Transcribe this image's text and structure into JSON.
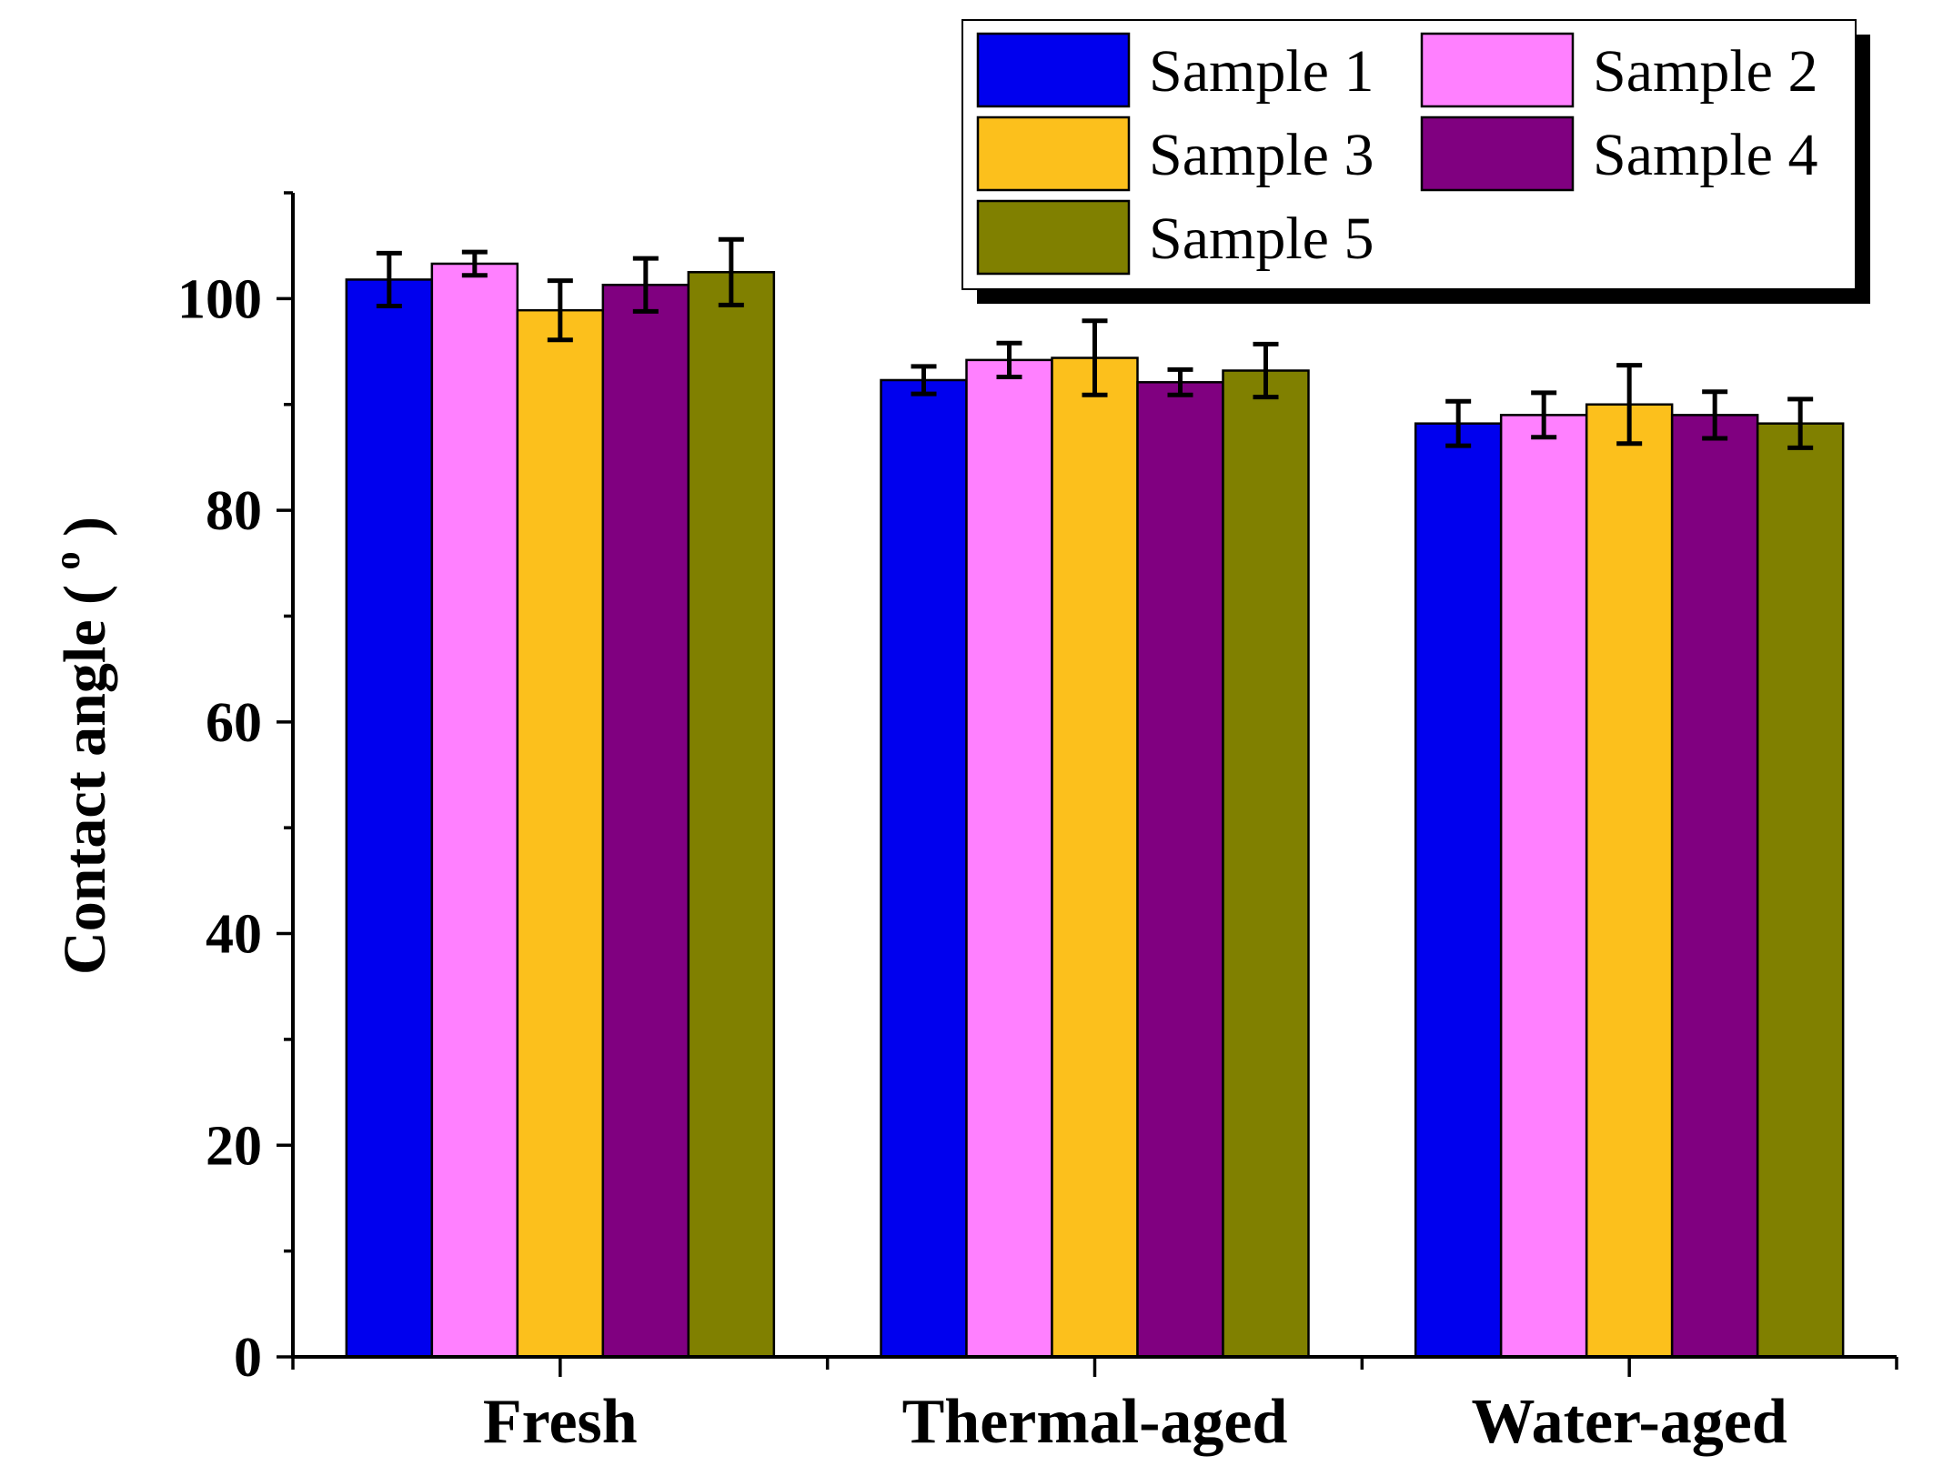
{
  "chart_data": {
    "type": "bar",
    "title": "",
    "xlabel": "",
    "ylabel": "Contact angle ( ",
    "ylabel_superscript": "o",
    "ylabel_close": " )",
    "ylim": [
      0,
      110
    ],
    "yticks": [
      0,
      20,
      40,
      60,
      80,
      100
    ],
    "ytick_labels": [
      "0",
      "20",
      "40",
      "60",
      "80",
      "100"
    ],
    "categories": [
      "Fresh",
      "Thermal-aged",
      "Water-aged"
    ],
    "grid": false,
    "legend_position": "top-right",
    "error_bars": true,
    "series": [
      {
        "name": "Sample 1",
        "color": "#0000ee",
        "values": [
          101.8,
          92.3,
          88.2
        ],
        "errors": [
          2.5,
          1.3,
          2.1
        ]
      },
      {
        "name": "Sample 2",
        "color": "#ff80ff",
        "values": [
          103.3,
          94.2,
          89.0
        ],
        "errors": [
          1.1,
          1.6,
          2.1
        ]
      },
      {
        "name": "Sample 3",
        "color": "#fcc01c",
        "values": [
          98.9,
          94.4,
          90.0
        ],
        "errors": [
          2.8,
          3.5,
          3.7
        ]
      },
      {
        "name": "Sample 4",
        "color": "#800080",
        "values": [
          101.3,
          92.1,
          89.0
        ],
        "errors": [
          2.5,
          1.2,
          2.2
        ]
      },
      {
        "name": "Sample 5",
        "color": "#808000",
        "values": [
          102.5,
          93.2,
          88.2
        ],
        "errors": [
          3.1,
          2.5,
          2.3
        ]
      }
    ]
  }
}
